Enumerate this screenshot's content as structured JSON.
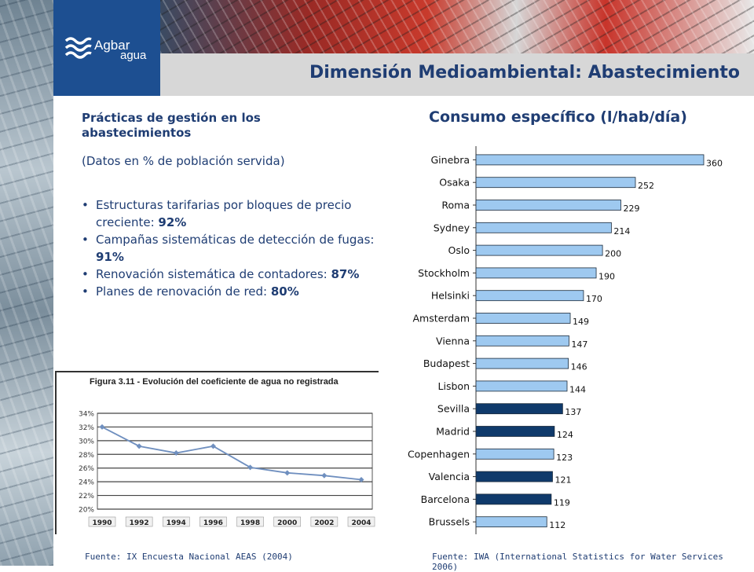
{
  "header": {
    "logo_word1": "Agbar",
    "logo_word2": "agua",
    "title": "Dimensión Medioambiental: Abastecimiento",
    "brand_color": "#1d4f91"
  },
  "left_panel": {
    "section_title": "Prácticas de gestión en los abastecimientos",
    "subtitle": "(Datos en % de población servida)",
    "bullets": [
      {
        "text": "Estructuras tarifarias por bloques de precio creciente: ",
        "value": "92%"
      },
      {
        "text": "Campañas sistemáticas de detección de fugas: ",
        "value": "91%"
      },
      {
        "text": "Renovación sistemática de contadores: ",
        "value": "87%"
      },
      {
        "text": "Planes de renovación de red: ",
        "value": "80%"
      }
    ]
  },
  "chart_title": "Consumo específico (l/hab/día)",
  "sources": {
    "left": "Fuente: IX Encuesta Nacional AEAS (2004)",
    "right": "Fuente: IWA (International Statistics for Water Services 2006)"
  },
  "chart_data": [
    {
      "type": "line",
      "title": "Figura 3.11 - Evolución del coeficiente de agua no registrada",
      "x": [
        "1990",
        "1992",
        "1994",
        "1996",
        "1998",
        "2000",
        "2002",
        "2004"
      ],
      "y_ticks": [
        "34%",
        "32%",
        "30%",
        "28%",
        "26%",
        "24%",
        "22%",
        "20%"
      ],
      "ylim": [
        20,
        34
      ],
      "series": [
        {
          "values": [
            32.0,
            29.2,
            28.2,
            29.2,
            26.1,
            25.3,
            24.9,
            24.3
          ]
        }
      ],
      "line_color": "#6f8fbf",
      "grid": true
    },
    {
      "type": "bar",
      "orientation": "horizontal",
      "categories": [
        "Ginebra",
        "Osaka",
        "Roma",
        "Sydney",
        "Oslo",
        "Stockholm",
        "Helsinki",
        "Amsterdam",
        "Vienna",
        "Budapest",
        "Lisbon",
        "Sevilla",
        "Madrid",
        "Copenhagen",
        "Valencia",
        "Barcelona",
        "Brussels"
      ],
      "values": [
        360,
        252,
        229,
        214,
        200,
        190,
        170,
        149,
        147,
        146,
        144,
        137,
        124,
        123,
        121,
        119,
        112
      ],
      "highlight": [
        false,
        false,
        false,
        false,
        false,
        false,
        false,
        false,
        false,
        false,
        false,
        true,
        true,
        false,
        true,
        true,
        false
      ],
      "colors": {
        "default": "#9ec9f0",
        "highlight": "#0f3a6b"
      },
      "xlim": [
        0,
        360
      ]
    }
  ]
}
